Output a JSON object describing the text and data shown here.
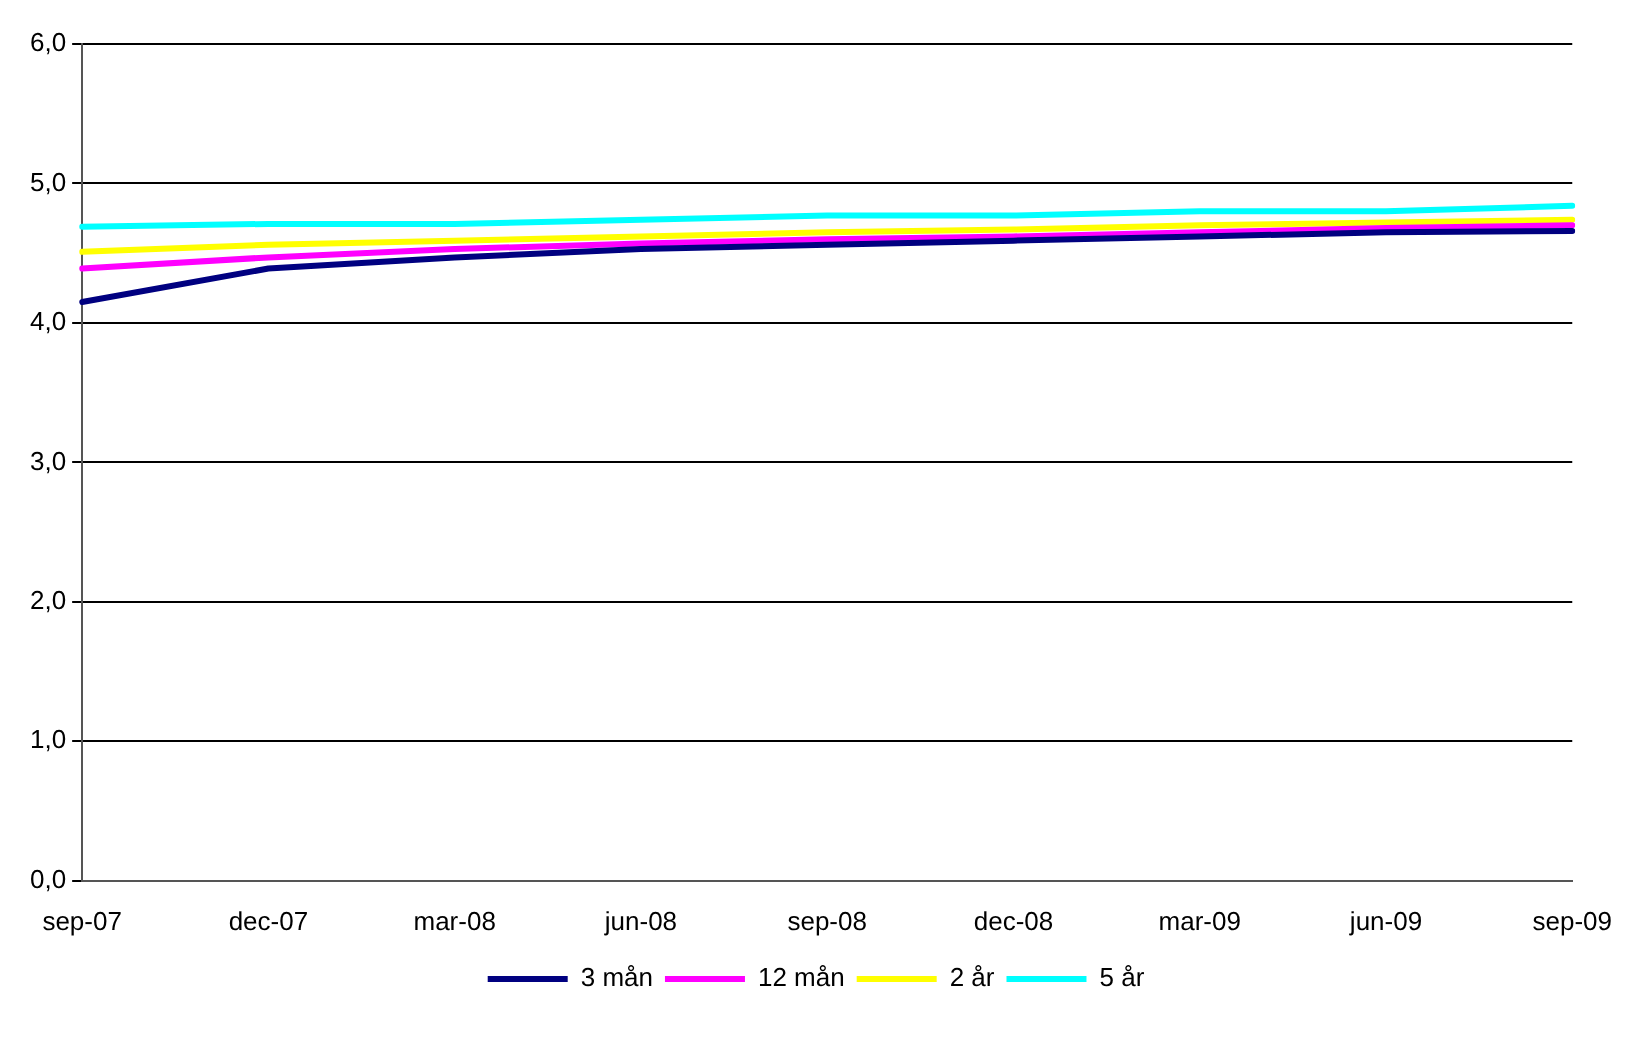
{
  "chart_data": {
    "type": "line",
    "categories": [
      "sep-07",
      "dec-07",
      "mar-08",
      "jun-08",
      "sep-08",
      "dec-08",
      "mar-09",
      "jun-09",
      "sep-09"
    ],
    "series": [
      {
        "name": "3 mån",
        "color": "#000080",
        "values": [
          4.15,
          4.39,
          4.47,
          4.53,
          4.56,
          4.59,
          4.62,
          4.65,
          4.66
        ]
      },
      {
        "name": "12 mån",
        "color": "#ff00ff",
        "values": [
          4.39,
          4.47,
          4.53,
          4.57,
          4.6,
          4.62,
          4.65,
          4.68,
          4.7
        ]
      },
      {
        "name": "2 år",
        "color": "#ffff00",
        "values": [
          4.51,
          4.56,
          4.59,
          4.62,
          4.65,
          4.67,
          4.7,
          4.72,
          4.74
        ]
      },
      {
        "name": "5 år",
        "color": "#00ffff",
        "values": [
          4.69,
          4.71,
          4.71,
          4.74,
          4.77,
          4.77,
          4.8,
          4.8,
          4.84
        ]
      }
    ],
    "ylim": [
      0,
      6
    ],
    "yticks": [
      {
        "value": 0,
        "label": "0,0"
      },
      {
        "value": 1,
        "label": "1,0"
      },
      {
        "value": 2,
        "label": "2,0"
      },
      {
        "value": 3,
        "label": "3,0"
      },
      {
        "value": 4,
        "label": "4,0"
      },
      {
        "value": 5,
        "label": "5,0"
      },
      {
        "value": 6,
        "label": "6,0"
      }
    ],
    "grid": "y",
    "legend": "bottom",
    "marker": "none",
    "line_style": "solid"
  }
}
